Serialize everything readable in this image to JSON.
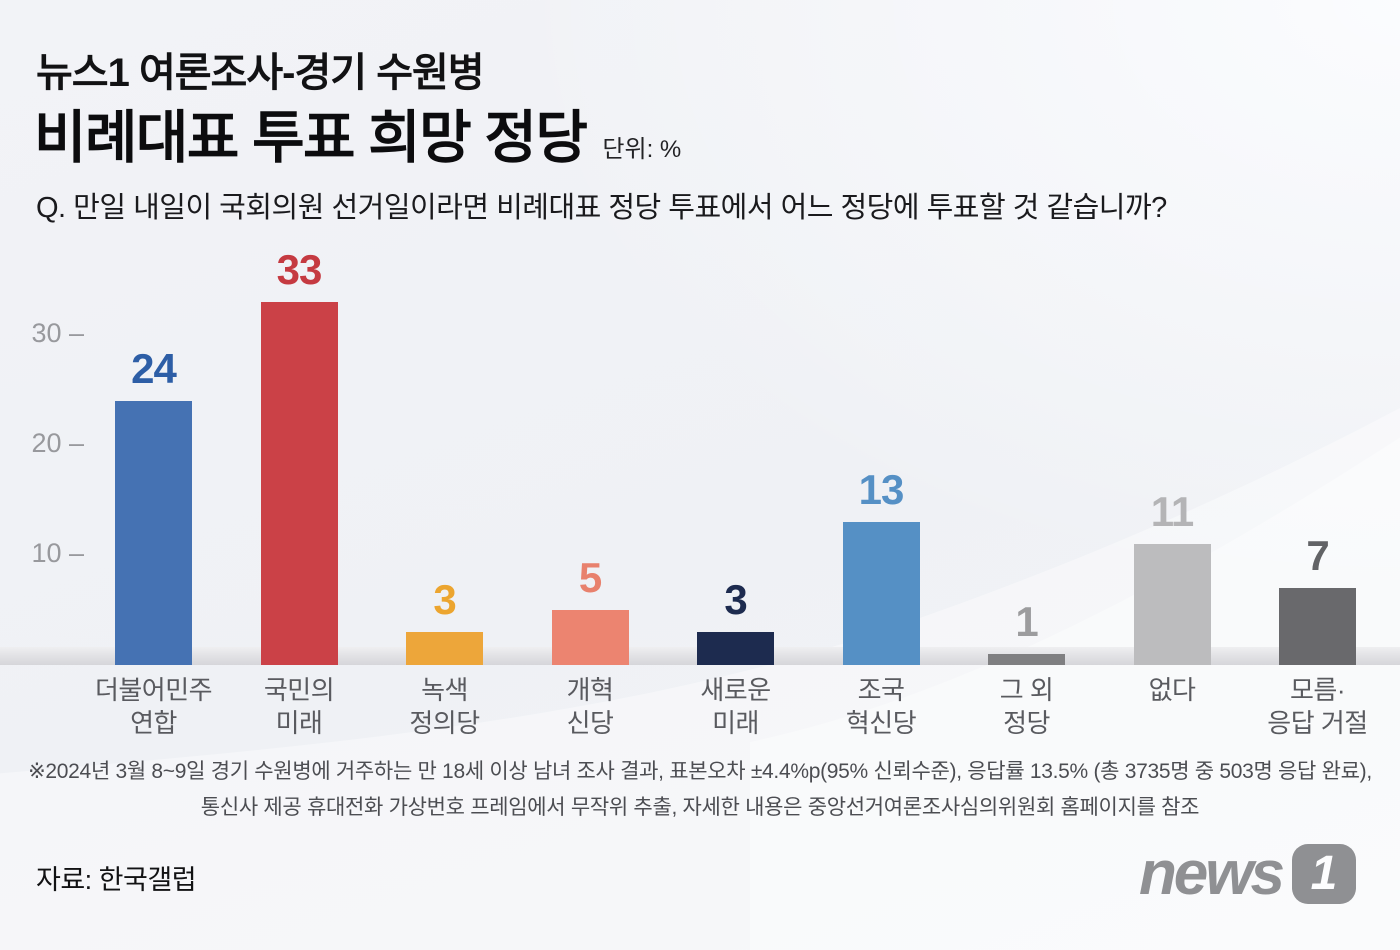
{
  "header": {
    "subtitle": "뉴스1 여론조사-경기 수원병",
    "title": "비례대표 투표 희망 정당",
    "unit": "단위: %",
    "question": "Q. 만일 내일이 국회의원 선거일이라면 비례대표 정당 투표에서 어느 정당에 투표할 것 같습니까?"
  },
  "chart_data": {
    "type": "bar",
    "title": "비례대표 투표 희망 정당",
    "unit": "%",
    "ylim": [
      0,
      35
    ],
    "yticks": [
      30,
      20,
      10
    ],
    "grid": false,
    "legend": false,
    "categories": [
      "더불어민주연합",
      "국민의미래",
      "녹색정의당",
      "개혁신당",
      "새로운미래",
      "조국혁신당",
      "그 외 정당",
      "없다",
      "모름·응답 거절"
    ],
    "values": [
      24,
      33,
      3,
      5,
      3,
      13,
      1,
      11,
      7
    ],
    "bars": [
      {
        "name": "더불어민주연합",
        "label_lines": [
          "더불어민주",
          "연합"
        ],
        "value": 24,
        "bar_color": "#4572b3",
        "label_color": "#2d5ea6"
      },
      {
        "name": "국민의미래",
        "label_lines": [
          "국민의",
          "미래"
        ],
        "value": 33,
        "bar_color": "#cb4147",
        "label_color": "#c53a41"
      },
      {
        "name": "녹색정의당",
        "label_lines": [
          "녹색",
          "정의당"
        ],
        "value": 3,
        "bar_color": "#eda63a",
        "label_color": "#eca52f"
      },
      {
        "name": "개혁신당",
        "label_lines": [
          "개혁",
          "신당"
        ],
        "value": 5,
        "bar_color": "#ec8470",
        "label_color": "#e8816d"
      },
      {
        "name": "새로운미래",
        "label_lines": [
          "새로운",
          "미래"
        ],
        "value": 3,
        "bar_color": "#1d2b4f",
        "label_color": "#1d2b4f"
      },
      {
        "name": "조국혁신당",
        "label_lines": [
          "조국",
          "혁신당"
        ],
        "value": 13,
        "bar_color": "#5590c5",
        "label_color": "#5590c5"
      },
      {
        "name": "그외정당",
        "label_lines": [
          "그 외",
          "정당"
        ],
        "value": 1,
        "bar_color": "#7f7f81",
        "label_color": "#9c9c9e"
      },
      {
        "name": "없다",
        "label_lines": [
          "없다"
        ],
        "value": 11,
        "bar_color": "#bcbcbe",
        "label_color": "#b4b4b6"
      },
      {
        "name": "모름응답거절",
        "label_lines": [
          "모름·",
          "응답 거절"
        ],
        "value": 7,
        "bar_color": "#69696c",
        "label_color": "#626366"
      }
    ]
  },
  "footnote": {
    "line1": "※2024년 3월 8~9일 경기 수원병에 거주하는 만 18세 이상 남녀 조사 결과, 표본오차 ±4.4%p(95% 신뢰수준), 응답률 13.5% (총 3735명 중 503명 응답 완료),",
    "line2": "통신사 제공 휴대전화 가상번호 프레임에서 무작위 추출, 자세한 내용은 중앙선거여론조사심의위원회 홈페이지를 참조"
  },
  "source": "자료: 한국갤럽",
  "logo": {
    "text": "news",
    "badge": "1"
  },
  "colors": {
    "background": "#f1f2f6",
    "baseline_strip": "#dcdcdf",
    "tick_text": "#98999d",
    "category_text": "#595a5f",
    "footnote_text": "#4c4d52",
    "logo_gray": "#8f9093"
  }
}
